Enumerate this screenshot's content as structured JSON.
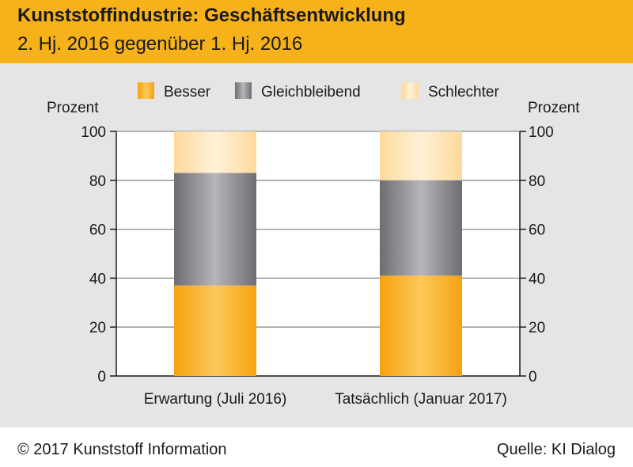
{
  "header": {
    "title": "Kunststoffindustrie: Geschäftsentwicklung",
    "subtitle": "2. Hj. 2016 gegenüber 1. Hj. 2016"
  },
  "footer": {
    "copyright": "© 2017 Kunststoff Information",
    "source": "Quelle: KI Dialog"
  },
  "colors": {
    "header_bg": "#f7b21a",
    "panel_bg": "#e5e5e5",
    "besser": "#f9b42a",
    "gleichbleibend": "#8c8c90",
    "schlechter": "#fde3b6"
  },
  "chart_data": {
    "type": "bar",
    "stacked": true,
    "categories": [
      "Erwartung (Juli 2016)",
      "Tatsächlich (Januar 2017)"
    ],
    "series": [
      {
        "name": "Besser",
        "values": [
          37,
          41
        ]
      },
      {
        "name": "Gleichbleibend",
        "values": [
          46,
          39
        ]
      },
      {
        "name": "Schlechter",
        "values": [
          17,
          20
        ]
      }
    ],
    "ylabel_left": "Prozent",
    "ylabel_right": "Prozent",
    "ylim": [
      0,
      100
    ],
    "yticks": [
      0,
      20,
      40,
      60,
      80,
      100
    ],
    "grid": true,
    "legend_position": "top"
  }
}
